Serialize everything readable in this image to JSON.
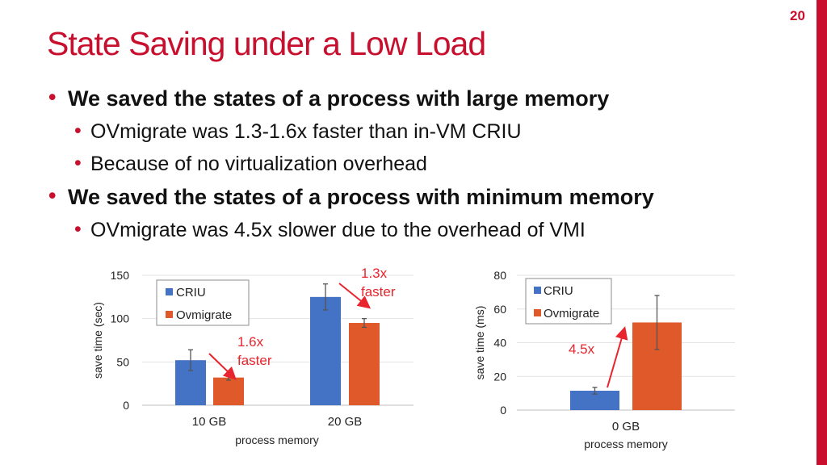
{
  "page_number": "20",
  "title": "State Saving under a Low Load",
  "bullets": [
    {
      "level": 1,
      "text": "We saved the states of a process with large memory"
    },
    {
      "level": 2,
      "text": "OVmigrate was 1.3-1.6x faster than in-VM CRIU"
    },
    {
      "level": 2,
      "text": "Because of no virtualization overhead"
    },
    {
      "level": 1,
      "text": "We saved the states of a process with minimum memory"
    },
    {
      "level": 2,
      "text": "OVmigrate was 4.5x slower due to the overhead of VMI"
    }
  ],
  "colors": {
    "accent": "#c8102e",
    "criu": "#4472c4",
    "ovmigrate": "#e0592a",
    "annotation": "#e8252e"
  },
  "chart_data": [
    {
      "type": "bar",
      "categories": [
        "10 GB",
        "20 GB"
      ],
      "series": [
        {
          "name": "CRIU",
          "values": [
            52,
            125
          ],
          "error": [
            12,
            15
          ]
        },
        {
          "name": "Ovmigrate",
          "values": [
            32,
            95
          ],
          "error": [
            3,
            5
          ]
        }
      ],
      "xlabel": "process memory",
      "ylabel": "save time (sec)",
      "ylim": [
        0,
        150
      ],
      "yticks": [
        0,
        50,
        100,
        150
      ],
      "legend": "top-left",
      "annotations": [
        {
          "text": [
            "1.6x",
            "faster"
          ]
        },
        {
          "text": [
            "1.3x",
            "faster"
          ]
        }
      ]
    },
    {
      "type": "bar",
      "categories": [
        "0 GB"
      ],
      "series": [
        {
          "name": "CRIU",
          "values": [
            11.5
          ],
          "error": [
            2
          ]
        },
        {
          "name": "Ovmigrate",
          "values": [
            52
          ],
          "error": [
            16
          ]
        }
      ],
      "xlabel": "process memory",
      "ylabel": "save time (ms)",
      "ylim": [
        0,
        80
      ],
      "yticks": [
        0,
        20,
        40,
        60,
        80
      ],
      "legend": "top-left",
      "annotations": [
        {
          "text": [
            "4.5x"
          ]
        }
      ]
    }
  ]
}
